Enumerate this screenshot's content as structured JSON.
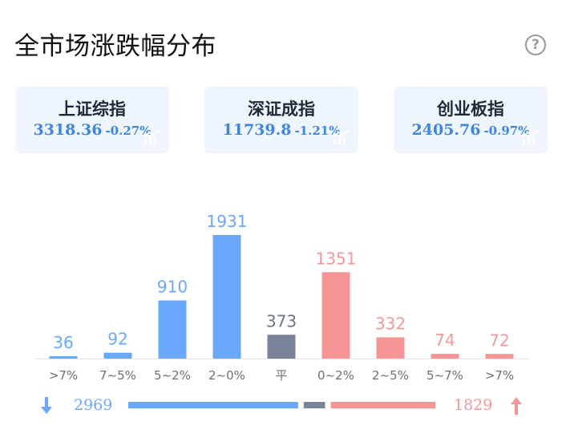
{
  "header": {
    "title": "全市场涨跌幅分布",
    "help_icon": "?"
  },
  "indices": [
    {
      "name": "上证综指",
      "price": "3318.36",
      "change": "-0.27%"
    },
    {
      "name": "深证成指",
      "price": "11739.8",
      "change": "-1.21%"
    },
    {
      "name": "创业板指",
      "price": "2405.76",
      "change": "-0.97%"
    }
  ],
  "colors": {
    "down": "#6aa8fb",
    "flat": "#7a8499",
    "up": "#f69596",
    "index_bg": "#eef5fd",
    "index_value": "#3f86df"
  },
  "chart_data": {
    "type": "bar",
    "categories": [
      ">7%",
      "7~5%",
      "5~2%",
      "2~0%",
      "平",
      "0~2%",
      "2~5%",
      "5~7%",
      ">7%"
    ],
    "values": [
      36,
      92,
      910,
      1931,
      373,
      1351,
      332,
      74,
      72
    ],
    "groups": [
      "down",
      "down",
      "down",
      "down",
      "flat",
      "up",
      "up",
      "up",
      "up"
    ],
    "ylim": [
      0,
      1931
    ]
  },
  "summary": {
    "down_count": "2969",
    "flat_count": 373,
    "up_count": "1829"
  }
}
